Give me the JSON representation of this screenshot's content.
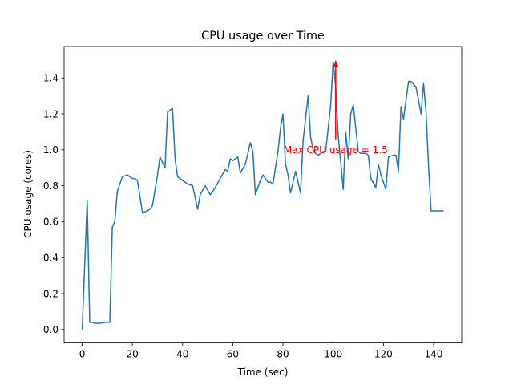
{
  "chart_data": {
    "type": "line",
    "title": "CPU usage over Time",
    "xlabel": "Time (sec)",
    "ylabel": "CPU usage (cores)",
    "xlim": [
      -7.2,
      151.2
    ],
    "ylim": [
      -0.075,
      1.575
    ],
    "xticks": [
      0,
      20,
      40,
      60,
      80,
      100,
      120,
      140
    ],
    "xtick_labels": [
      "0",
      "20",
      "40",
      "60",
      "80",
      "100",
      "120",
      "140"
    ],
    "yticks": [
      0.0,
      0.2,
      0.4,
      0.6,
      0.8,
      1.0,
      1.2,
      1.4
    ],
    "ytick_labels": [
      "0.0",
      "0.2",
      "0.4",
      "0.6",
      "0.8",
      "1.0",
      "1.2",
      "1.4"
    ],
    "grid": false,
    "line_color": "#1f77b4",
    "annotation_color": "#ff0000",
    "annotation": {
      "text": "Max CPU usage = 1.5",
      "xy": [
        101,
        1.5
      ],
      "xytext": [
        101,
        1.0
      ]
    },
    "series": [
      {
        "x": [
          0,
          2,
          3,
          4,
          5,
          7,
          9,
          10,
          11,
          12,
          13,
          14,
          16,
          18,
          20,
          21,
          22,
          24,
          26,
          27,
          28,
          30,
          31,
          33,
          34,
          35,
          36,
          37,
          38,
          40,
          42,
          44,
          46,
          47,
          49,
          51,
          53,
          55,
          57,
          58,
          59,
          60,
          62,
          63,
          65,
          67,
          68,
          69,
          71,
          72,
          74,
          75,
          76,
          78,
          79,
          80,
          81,
          82,
          83,
          85,
          87,
          88,
          90,
          91,
          92,
          93,
          94,
          96,
          97,
          99,
          100,
          101,
          102,
          104,
          105,
          106,
          107,
          108,
          110,
          111,
          112,
          113,
          114,
          115,
          117,
          118,
          119,
          121,
          122,
          124,
          125,
          126,
          127,
          128,
          130,
          131,
          133,
          135,
          136,
          137,
          138,
          139,
          140,
          141,
          142,
          144
        ],
        "y": [
          0.0,
          0.72,
          0.04,
          0.04,
          0.035,
          0.035,
          0.04,
          0.04,
          0.04,
          0.57,
          0.6,
          0.77,
          0.85,
          0.86,
          0.84,
          0.84,
          0.83,
          0.65,
          0.66,
          0.67,
          0.69,
          0.86,
          0.96,
          0.9,
          1.21,
          1.22,
          1.23,
          0.95,
          0.85,
          0.83,
          0.81,
          0.8,
          0.67,
          0.75,
          0.8,
          0.75,
          0.79,
          0.84,
          0.89,
          0.88,
          0.95,
          0.94,
          0.96,
          0.87,
          0.92,
          1.04,
          0.99,
          0.75,
          0.83,
          0.86,
          0.82,
          0.82,
          0.81,
          0.99,
          1.12,
          1.2,
          0.92,
          0.86,
          0.76,
          0.88,
          0.76,
          1.05,
          1.3,
          1.07,
          1.0,
          0.98,
          0.97,
          0.99,
          0.99,
          1.25,
          1.49,
          1.35,
          1.08,
          0.78,
          1.1,
          0.95,
          1.2,
          1.25,
          0.99,
          0.98,
          0.98,
          0.98,
          0.97,
          0.84,
          0.79,
          0.92,
          0.86,
          0.78,
          0.96,
          0.97,
          0.97,
          0.88,
          1.24,
          1.17,
          1.38,
          1.38,
          1.35,
          1.2,
          1.37,
          1.21,
          0.91,
          0.66,
          0.66,
          0.66,
          0.66,
          0.66
        ]
      }
    ]
  }
}
